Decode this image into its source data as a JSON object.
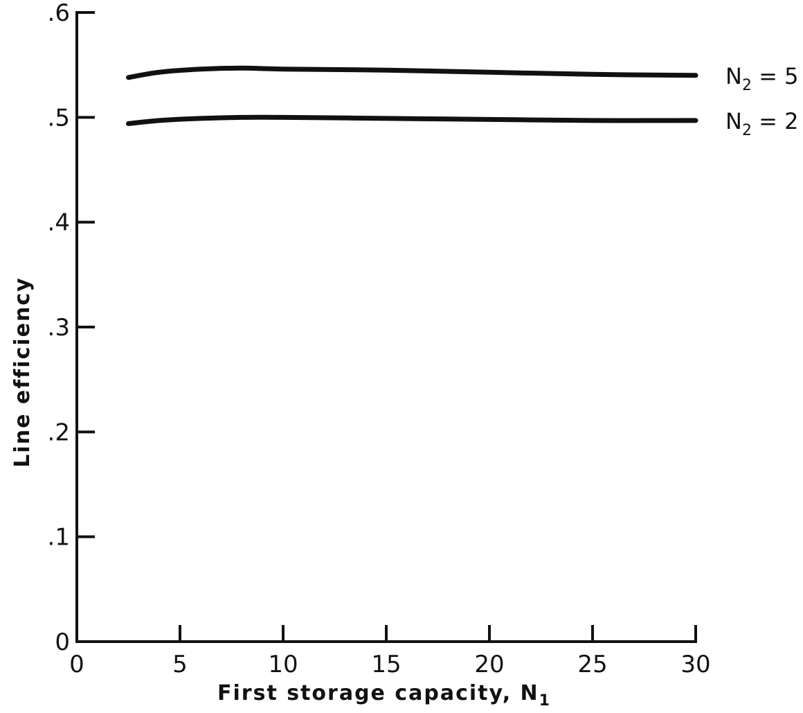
{
  "chart_data": {
    "type": "line",
    "title": "",
    "xlabel": "First storage capacity, N",
    "xlabel_subscript": "1",
    "ylabel": "Line efficiency",
    "xlim": [
      0,
      30
    ],
    "ylim": [
      0,
      0.6
    ],
    "x_ticks": [
      0,
      5,
      10,
      15,
      20,
      25,
      30
    ],
    "x_tick_labels": [
      "0",
      "5",
      "10",
      "15",
      "20",
      "25",
      "30"
    ],
    "y_ticks": [
      0,
      0.1,
      0.2,
      0.3,
      0.4,
      0.5,
      0.6
    ],
    "y_tick_labels": [
      "0",
      ".1",
      ".2",
      ".3",
      ".4",
      ".5",
      ".6"
    ],
    "grid": false,
    "series": [
      {
        "name": "N2 = 5",
        "label_main": "N",
        "label_sub": "2",
        "label_rest": " = 5",
        "x": [
          2.5,
          4,
          6,
          8,
          10,
          15,
          20,
          25,
          30
        ],
        "values": [
          0.538,
          0.543,
          0.546,
          0.547,
          0.546,
          0.545,
          0.543,
          0.541,
          0.54
        ]
      },
      {
        "name": "N2 = 2",
        "label_main": "N",
        "label_sub": "2",
        "label_rest": " = 2",
        "x": [
          2.5,
          4,
          6,
          8,
          10,
          15,
          20,
          25,
          30
        ],
        "values": [
          0.494,
          0.497,
          0.499,
          0.5,
          0.5,
          0.499,
          0.498,
          0.497,
          0.497
        ]
      }
    ]
  }
}
